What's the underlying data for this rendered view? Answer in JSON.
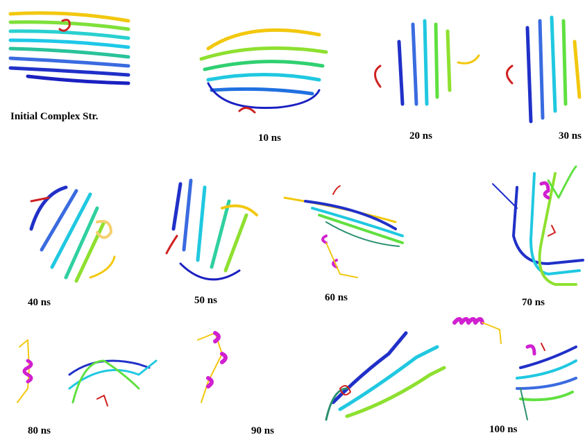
{
  "panels": [
    {
      "label": "Initial Complex Str."
    },
    {
      "label": "10 ns"
    },
    {
      "label": "20 ns"
    },
    {
      "label": "30 ns"
    },
    {
      "label": "40 ns"
    },
    {
      "label": "50 ns"
    },
    {
      "label": "60 ns"
    },
    {
      "label": "70 ns"
    },
    {
      "label": "80 ns"
    },
    {
      "label": "90 ns"
    },
    {
      "label": "100 ns"
    }
  ]
}
